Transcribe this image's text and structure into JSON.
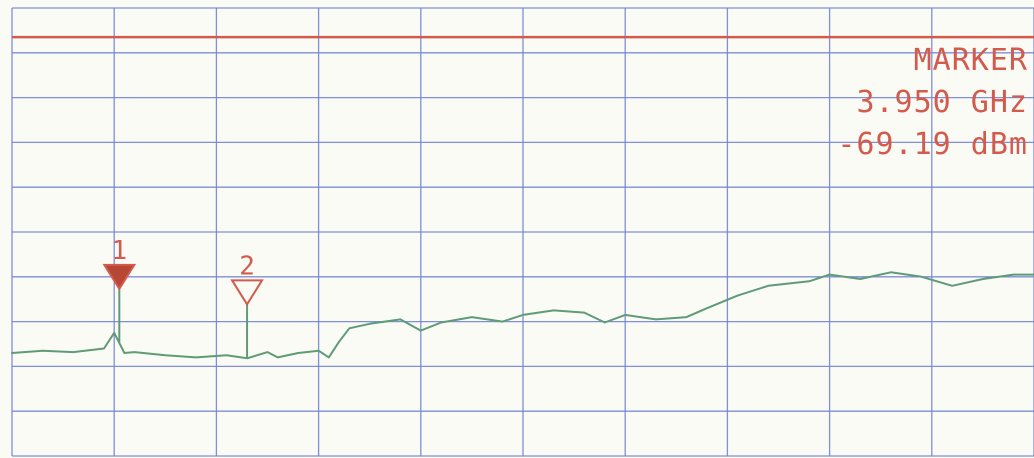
{
  "marker_readout": {
    "title": "MARKER",
    "frequency": "3.950 GHz",
    "amplitude": "-69.19 dBm"
  },
  "chart_data": {
    "type": "line",
    "grid": true,
    "x_divisions": 10,
    "y_divisions": 10,
    "reference_level_division": 9.35,
    "series": [
      {
        "x": [
          0,
          0.3,
          0.6,
          0.9,
          1.0,
          1.1,
          1.2,
          1.5,
          1.8,
          2.1,
          2.3,
          2.5,
          2.6,
          2.8,
          3.0,
          3.1,
          3.2,
          3.3,
          3.5,
          3.8,
          4.0,
          4.2,
          4.5,
          4.8,
          5.0,
          5.3,
          5.6,
          5.8,
          6.0,
          6.3,
          6.6,
          6.8,
          7.1,
          7.4,
          7.8,
          8.0,
          8.3,
          8.6,
          8.9,
          9.2,
          9.5,
          9.8,
          10.0
        ],
        "y": [
          2.3,
          2.35,
          2.32,
          2.4,
          2.75,
          2.3,
          2.32,
          2.25,
          2.2,
          2.25,
          2.18,
          2.32,
          2.2,
          2.3,
          2.35,
          2.2,
          2.55,
          2.85,
          2.95,
          3.05,
          2.8,
          2.98,
          3.1,
          3.0,
          3.15,
          3.25,
          3.2,
          2.98,
          3.15,
          3.05,
          3.1,
          3.3,
          3.58,
          3.8,
          3.9,
          4.05,
          3.95,
          4.1,
          4.0,
          3.8,
          3.95,
          4.05,
          4.05
        ]
      }
    ],
    "markers": [
      {
        "label": "1",
        "x": 1.05,
        "style": "filled"
      },
      {
        "label": "2",
        "x": 2.3,
        "style": "hollow"
      }
    ]
  }
}
